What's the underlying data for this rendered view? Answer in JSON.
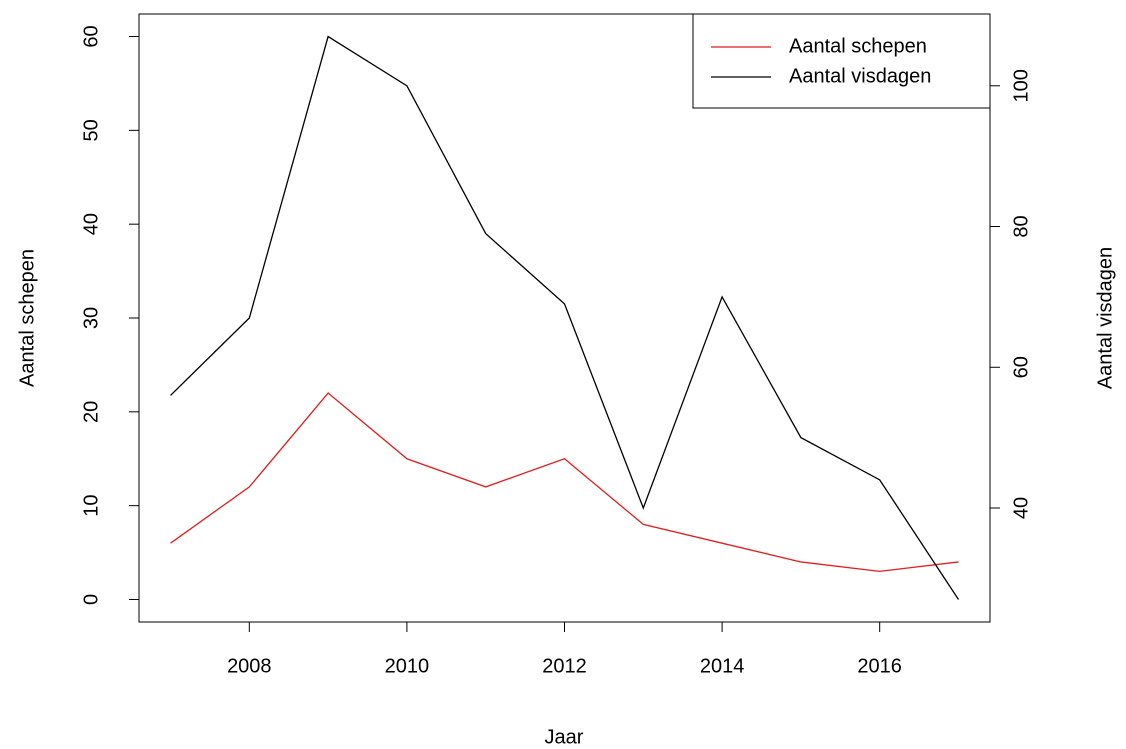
{
  "chart_data": {
    "type": "line",
    "xlabel": "Jaar",
    "ylabel": "Aantal schepen",
    "y2label": "Aantal visdagen",
    "x": [
      2007,
      2008,
      2009,
      2010,
      2011,
      2012,
      2013,
      2014,
      2015,
      2016,
      2017
    ],
    "series": [
      {
        "name": "Aantal schepen",
        "color": "#df1f1f",
        "values": [
          6,
          12,
          22,
          15,
          12,
          15,
          8,
          6,
          4,
          3,
          4
        ]
      },
      {
        "name": "Aantal visdagen",
        "color": "#000000",
        "axis": "y2",
        "values": [
          56,
          67,
          107,
          100,
          79,
          69,
          40,
          70,
          50,
          44,
          27
        ]
      }
    ],
    "xlim": [
      2006.6,
      2017.4
    ],
    "xticks": [
      2008,
      2010,
      2012,
      2014,
      2016
    ],
    "ylim": [
      -2.4,
      62.4
    ],
    "yticks": [
      0,
      10,
      20,
      30,
      40,
      50,
      60
    ],
    "y2lim": [
      23.8,
      110.2
    ],
    "y2ticks": [
      40,
      60,
      80,
      100
    ],
    "legend": "topright"
  }
}
